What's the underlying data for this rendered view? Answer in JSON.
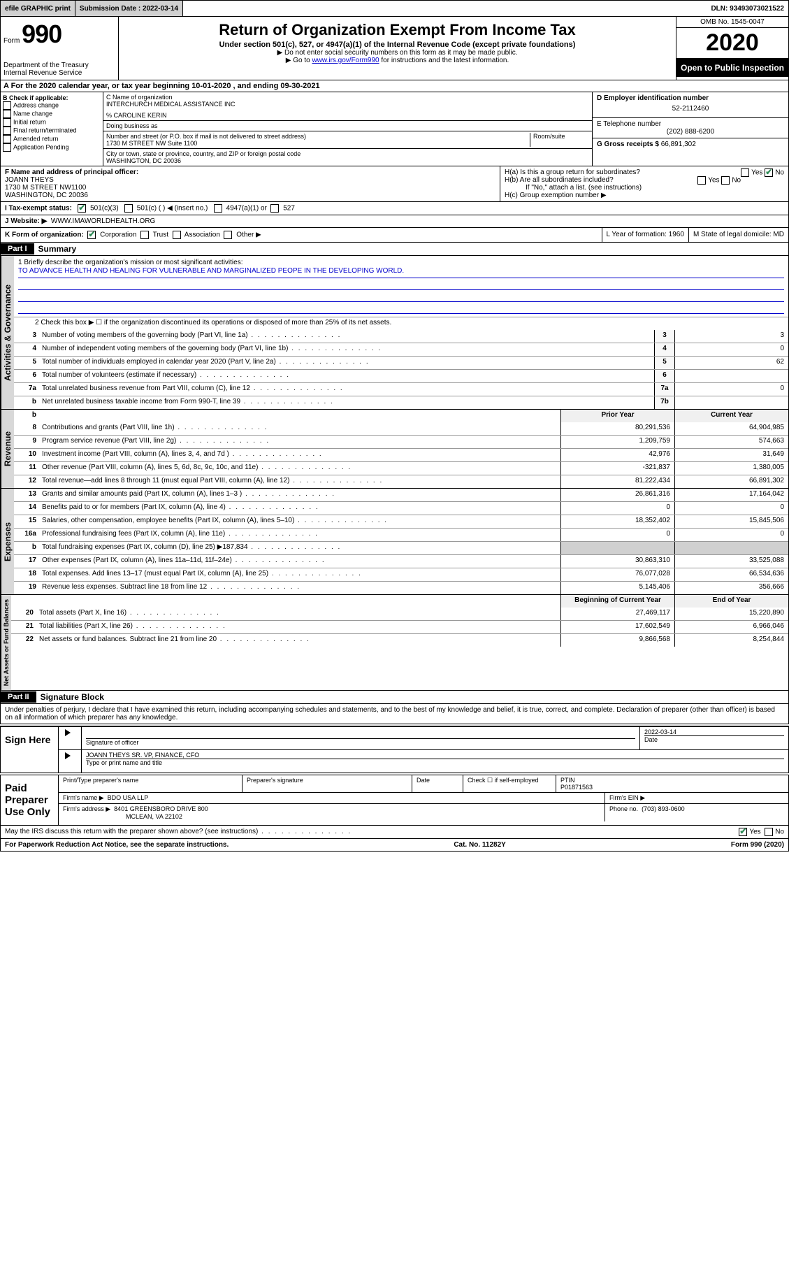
{
  "topbar": {
    "efile": "efile GRAPHIC print",
    "submission_label": "Submission Date :",
    "submission_date": "2022-03-14",
    "dln_label": "DLN:",
    "dln": "93493073021522"
  },
  "header": {
    "form_word": "Form",
    "form_num": "990",
    "dept": "Department of the Treasury\nInternal Revenue Service",
    "title": "Return of Organization Exempt From Income Tax",
    "subtitle": "Under section 501(c), 527, or 4947(a)(1) of the Internal Revenue Code (except private foundations)",
    "instr1": "▶ Do not enter social security numbers on this form as it may be made public.",
    "instr2_pre": "▶ Go to ",
    "instr2_link": "www.irs.gov/Form990",
    "instr2_post": " for instructions and the latest information.",
    "omb": "OMB No. 1545-0047",
    "year": "2020",
    "inspect": "Open to Public Inspection"
  },
  "rowA": "A   For the 2020 calendar year, or tax year beginning 10-01-2020    , and ending 09-30-2021",
  "colB": {
    "label": "B Check if applicable:",
    "items": [
      "Address change",
      "Name change",
      "Initial return",
      "Final return/terminated",
      "Amended return",
      "Application Pending"
    ]
  },
  "colC": {
    "name_label": "C Name of organization",
    "name": "INTERCHURCH MEDICAL ASSISTANCE INC",
    "care_of": "% CAROLINE KERIN",
    "dba_label": "Doing business as",
    "addr_label": "Number and street (or P.O. box if mail is not delivered to street address)",
    "room_label": "Room/suite",
    "addr": "1730 M STREET NW Suite 1100",
    "city_label": "City or town, state or province, country, and ZIP or foreign postal code",
    "city": "WASHINGTON, DC  20036"
  },
  "colD": {
    "ein_label": "D Employer identification number",
    "ein": "52-2112460",
    "tel_label": "E Telephone number",
    "tel": "(202) 888-6200",
    "gross_label": "G Gross receipts $",
    "gross": "66,891,302"
  },
  "rowF": {
    "label": "F  Name and address of principal officer:",
    "name": "JOANN THEYS",
    "addr1": "1730 M STREET NW1100",
    "addr2": "WASHINGTON, DC  20036"
  },
  "rowH": {
    "ha": "H(a)  Is this a group return for subordinates?",
    "hb": "H(b)  Are all subordinates included?",
    "hb_note": "If \"No,\" attach a list. (see instructions)",
    "hc": "H(c)  Group exemption number ▶"
  },
  "rowI": {
    "label": "I    Tax-exempt status:",
    "opts": [
      "501(c)(3)",
      "501(c) (  ) ◀ (insert no.)",
      "4947(a)(1) or",
      "527"
    ]
  },
  "rowJ": {
    "label": "J    Website: ▶",
    "value": "WWW.IMAWORLDHEALTH.ORG"
  },
  "rowK": {
    "label": "K Form of organization:",
    "opts": [
      "Corporation",
      "Trust",
      "Association",
      "Other ▶"
    ],
    "L": "L Year of formation: 1960",
    "M": "M State of legal domicile: MD"
  },
  "part1": {
    "hdr": "Part I",
    "title": "Summary"
  },
  "summary": {
    "q1_label": "1   Briefly describe the organization's mission or most significant activities:",
    "q1_text": "TO ADVANCE HEALTH AND HEALING FOR VULNERABLE AND MARGINALIZED PEOPE IN THE DEVELOPING WORLD.",
    "q2": "2   Check this box ▶ ☐  if the organization discontinued its operations or disposed of more than 25% of its net assets.",
    "lines_gov": [
      {
        "n": "3",
        "t": "Number of voting members of the governing body (Part VI, line 1a)",
        "box": "3",
        "v": "3"
      },
      {
        "n": "4",
        "t": "Number of independent voting members of the governing body (Part VI, line 1b)",
        "box": "4",
        "v": "0"
      },
      {
        "n": "5",
        "t": "Total number of individuals employed in calendar year 2020 (Part V, line 2a)",
        "box": "5",
        "v": "62"
      },
      {
        "n": "6",
        "t": "Total number of volunteers (estimate if necessary)",
        "box": "6",
        "v": ""
      },
      {
        "n": "7a",
        "t": "Total unrelated business revenue from Part VIII, column (C), line 12",
        "box": "7a",
        "v": "0"
      },
      {
        "n": "b",
        "t": "Net unrelated business taxable income from Form 990-T, line 39",
        "box": "7b",
        "v": ""
      }
    ],
    "col_hdrs": {
      "prior": "Prior Year",
      "curr": "Current Year"
    },
    "rev": [
      {
        "n": "8",
        "t": "Contributions and grants (Part VIII, line 1h)",
        "p": "80,291,536",
        "c": "64,904,985"
      },
      {
        "n": "9",
        "t": "Program service revenue (Part VIII, line 2g)",
        "p": "1,209,759",
        "c": "574,663"
      },
      {
        "n": "10",
        "t": "Investment income (Part VIII, column (A), lines 3, 4, and 7d )",
        "p": "42,976",
        "c": "31,649"
      },
      {
        "n": "11",
        "t": "Other revenue (Part VIII, column (A), lines 5, 6d, 8c, 9c, 10c, and 11e)",
        "p": "-321,837",
        "c": "1,380,005"
      },
      {
        "n": "12",
        "t": "Total revenue—add lines 8 through 11 (must equal Part VIII, column (A), line 12)",
        "p": "81,222,434",
        "c": "66,891,302"
      }
    ],
    "exp": [
      {
        "n": "13",
        "t": "Grants and similar amounts paid (Part IX, column (A), lines 1–3 )",
        "p": "26,861,316",
        "c": "17,164,042"
      },
      {
        "n": "14",
        "t": "Benefits paid to or for members (Part IX, column (A), line 4)",
        "p": "0",
        "c": "0"
      },
      {
        "n": "15",
        "t": "Salaries, other compensation, employee benefits (Part IX, column (A), lines 5–10)",
        "p": "18,352,402",
        "c": "15,845,506"
      },
      {
        "n": "16a",
        "t": "Professional fundraising fees (Part IX, column (A), line 11e)",
        "p": "0",
        "c": "0"
      },
      {
        "n": "b",
        "t": "Total fundraising expenses (Part IX, column (D), line 25) ▶187,834",
        "p": "shaded",
        "c": "shaded"
      },
      {
        "n": "17",
        "t": "Other expenses (Part IX, column (A), lines 11a–11d, 11f–24e)",
        "p": "30,863,310",
        "c": "33,525,088"
      },
      {
        "n": "18",
        "t": "Total expenses. Add lines 13–17 (must equal Part IX, column (A), line 25)",
        "p": "76,077,028",
        "c": "66,534,636"
      },
      {
        "n": "19",
        "t": "Revenue less expenses. Subtract line 18 from line 12",
        "p": "5,145,406",
        "c": "356,666"
      }
    ],
    "net_hdrs": {
      "prior": "Beginning of Current Year",
      "curr": "End of Year"
    },
    "net": [
      {
        "n": "20",
        "t": "Total assets (Part X, line 16)",
        "p": "27,469,117",
        "c": "15,220,890"
      },
      {
        "n": "21",
        "t": "Total liabilities (Part X, line 26)",
        "p": "17,602,549",
        "c": "6,966,046"
      },
      {
        "n": "22",
        "t": "Net assets or fund balances. Subtract line 21 from line 20",
        "p": "9,866,568",
        "c": "8,254,844"
      }
    ]
  },
  "vert": {
    "gov": "Activities & Governance",
    "rev": "Revenue",
    "exp": "Expenses",
    "net": "Net Assets or Fund Balances"
  },
  "part2": {
    "hdr": "Part II",
    "title": "Signature Block"
  },
  "perjury": "Under penalties of perjury, I declare that I have examined this return, including accompanying schedules and statements, and to the best of my knowledge and belief, it is true, correct, and complete. Declaration of preparer (other than officer) is based on all information of which preparer has any knowledge.",
  "sign": {
    "here": "Sign Here",
    "sig_officer": "Signature of officer",
    "date_label": "Date",
    "date": "2022-03-14",
    "typed": "JOANN THEYS  SR. VP, FINANCE, CFO",
    "typed_label": "Type or print name and title"
  },
  "paid": {
    "label": "Paid Preparer Use Only",
    "h1": "Print/Type preparer's name",
    "h2": "Preparer's signature",
    "h3": "Date",
    "check": "Check ☐ if self-employed",
    "ptin_label": "PTIN",
    "ptin": "P01871563",
    "firm_name_label": "Firm's name   ▶",
    "firm_name": "BDO USA LLP",
    "firm_ein_label": "Firm's EIN ▶",
    "firm_addr_label": "Firm's address ▶",
    "firm_addr": "8401 GREENSBORO DRIVE 800",
    "firm_city": "MCLEAN, VA  22102",
    "phone_label": "Phone no.",
    "phone": "(703) 893-0600"
  },
  "discuss": "May the IRS discuss this return with the preparer shown above? (see instructions)",
  "footer": {
    "pra": "For Paperwork Reduction Act Notice, see the separate instructions.",
    "cat": "Cat. No. 11282Y",
    "form": "Form 990 (2020)"
  }
}
